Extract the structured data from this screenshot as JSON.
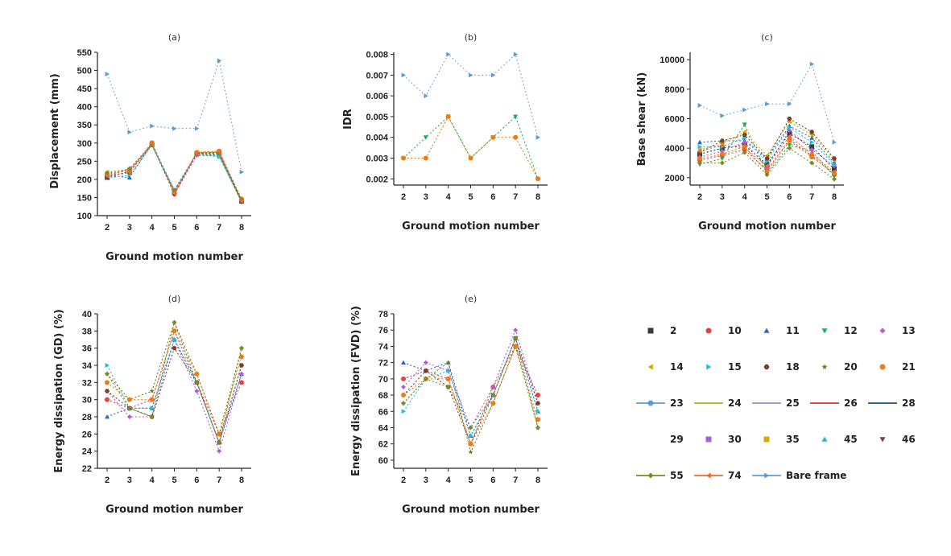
{
  "figure": {
    "colors": {
      "2": "#3b3b3b",
      "10": "#e8413c",
      "11": "#2f65c9",
      "12": "#1fae4f",
      "13": "#b85ad6",
      "14": "#c8b000",
      "15": "#17c2e0",
      "18": "#7a3e2a",
      "20": "#6f7d15",
      "21": "#ea7d17",
      "23": "#5b9bd5",
      "24": "#a6b523",
      "25": "#a884c7",
      "26": "#d9342b",
      "28": "#1f4e8a",
      "29": "#6b6b6b",
      "30": "#a55ee8",
      "35": "#e3a300",
      "45": "#22b8c8",
      "46": "#7a3d4f",
      "55": "#7a8a2a",
      "74": "#ed6c2b",
      "Bare frame": "#5b9bd5"
    },
    "legend": {
      "rows": [
        [
          "2",
          "10",
          "11",
          "12",
          "13"
        ],
        [
          "14",
          "15",
          "18",
          "20",
          "21"
        ],
        [
          "23",
          "24",
          "25",
          "26",
          "28"
        ],
        [
          "29",
          "30",
          "35",
          "45",
          "46"
        ],
        [
          "55",
          "74",
          "Bare frame"
        ]
      ],
      "markers": {
        "2": "square",
        "10": "circle",
        "11": "triangle-up",
        "12": "triangle-down",
        "13": "diamond",
        "14": "triangle-left",
        "15": "triangle-right",
        "18": "hexagon",
        "20": "star",
        "21": "circle",
        "23": "line-circle",
        "24": "line",
        "25": "line",
        "26": "line",
        "28": "line",
        "29": "none",
        "30": "square",
        "35": "square",
        "45": "triangle-up",
        "46": "triangle-down",
        "55": "line-diamond",
        "74": "line-triangle-left",
        "Bare frame": "line-triangle-right"
      }
    }
  },
  "chart_data": [
    {
      "id": "a",
      "type": "line",
      "title": "(a)",
      "xlabel": "Ground motion number",
      "ylabel": "Displacement (mm)",
      "x": [
        2,
        3,
        4,
        5,
        6,
        7,
        8
      ],
      "xticks": [
        "2",
        "3",
        "4",
        "5",
        "6",
        "7",
        "8"
      ],
      "ylim": [
        100,
        550
      ],
      "yticks": [
        "100",
        "150",
        "200",
        "250",
        "300",
        "350",
        "400",
        "450",
        "500",
        "550"
      ],
      "series": [
        {
          "name": "2",
          "values": [
            205,
            222,
            295,
            165,
            270,
            270,
            140
          ]
        },
        {
          "name": "10",
          "values": [
            212,
            218,
            297,
            168,
            272,
            272,
            142
          ]
        },
        {
          "name": "11",
          "values": [
            210,
            205,
            298,
            170,
            271,
            268,
            143
          ]
        },
        {
          "name": "12",
          "values": [
            215,
            225,
            300,
            162,
            268,
            266,
            138
          ]
        },
        {
          "name": "13",
          "values": [
            208,
            230,
            296,
            158,
            266,
            264,
            137
          ]
        },
        {
          "name": "14",
          "values": [
            220,
            226,
            294,
            166,
            275,
            276,
            145
          ]
        },
        {
          "name": "15",
          "values": [
            203,
            212,
            293,
            172,
            269,
            262,
            141
          ]
        },
        {
          "name": "18",
          "values": [
            206,
            220,
            299,
            160,
            273,
            274,
            139
          ]
        },
        {
          "name": "21",
          "values": [
            214,
            224,
            301,
            164,
            274,
            278,
            146
          ]
        },
        {
          "name": "55",
          "values": [
            218,
            228,
            296,
            168,
            270,
            272,
            144
          ]
        },
        {
          "name": "74",
          "values": [
            209,
            219,
            298,
            162,
            272,
            275,
            140
          ]
        },
        {
          "name": "Bare frame",
          "values": [
            490,
            330,
            347,
            340,
            340,
            527,
            220
          ]
        }
      ]
    },
    {
      "id": "b",
      "type": "line",
      "title": "(b)",
      "xlabel": "Ground motion number",
      "ylabel": "IDR",
      "x": [
        2,
        3,
        4,
        5,
        6,
        7,
        8
      ],
      "xticks": [
        "2",
        "3",
        "4",
        "5",
        "6",
        "7",
        "8"
      ],
      "ylim": [
        0.0017,
        0.0081
      ],
      "yticks": [
        "0.002",
        "0.003",
        "0.004",
        "0.005",
        "0.006",
        "0.007",
        "0.008"
      ],
      "tick_values": [
        0.002,
        0.003,
        0.004,
        0.005,
        0.006,
        0.007,
        0.008
      ],
      "series": [
        {
          "name": "12",
          "values": [
            0.003,
            0.004,
            0.005,
            0.003,
            0.004,
            0.005,
            0.002
          ]
        },
        {
          "name": "21",
          "values": [
            0.003,
            0.003,
            0.005,
            0.003,
            0.004,
            0.004,
            0.002
          ]
        },
        {
          "name": "Bare frame",
          "values": [
            0.007,
            0.006,
            0.008,
            0.007,
            0.007,
            0.008,
            0.004
          ]
        }
      ]
    },
    {
      "id": "c",
      "type": "line",
      "title": "(c)",
      "xlabel": "Ground motion number",
      "ylabel": "Base shear (kN)",
      "x": [
        2,
        3,
        4,
        5,
        6,
        7,
        8
      ],
      "xticks": [
        "2",
        "3",
        "4",
        "5",
        "6",
        "7",
        "8"
      ],
      "ylim": [
        1500,
        10500
      ],
      "yticks": [
        "2000",
        "4000",
        "6000",
        "8000",
        "10000"
      ],
      "tick_values": [
        2000,
        4000,
        6000,
        8000,
        10000
      ],
      "series": [
        {
          "name": "2",
          "values": [
            3600,
            4000,
            4200,
            2900,
            5000,
            4100,
            2600
          ]
        },
        {
          "name": "10",
          "values": [
            3200,
            3500,
            3900,
            2500,
            4600,
            3500,
            2200
          ]
        },
        {
          "name": "11",
          "values": [
            4400,
            4500,
            4500,
            3300,
            5500,
            4700,
            3000
          ]
        },
        {
          "name": "12",
          "values": [
            2900,
            3300,
            5600,
            2300,
            4200,
            3800,
            2100
          ]
        },
        {
          "name": "13",
          "values": [
            3400,
            3800,
            4400,
            2700,
            5200,
            3900,
            2800
          ]
        },
        {
          "name": "14",
          "values": [
            3900,
            4300,
            5100,
            3500,
            5800,
            4900,
            3200
          ]
        },
        {
          "name": "15",
          "values": [
            4100,
            4100,
            4700,
            3100,
            5400,
            4400,
            2900
          ]
        },
        {
          "name": "18",
          "values": [
            3700,
            4500,
            4900,
            3300,
            6000,
            5100,
            3300
          ]
        },
        {
          "name": "21",
          "values": [
            3300,
            3600,
            4100,
            2400,
            4500,
            3400,
            2300
          ]
        },
        {
          "name": "55",
          "values": [
            3000,
            3000,
            3700,
            2200,
            4000,
            3000,
            1900
          ]
        },
        {
          "name": "74",
          "values": [
            3800,
            4200,
            4000,
            2800,
            4800,
            3600,
            2400
          ]
        },
        {
          "name": "Bare frame",
          "values": [
            6900,
            6200,
            6600,
            7000,
            7000,
            9700,
            4400
          ]
        }
      ]
    },
    {
      "id": "d",
      "type": "line",
      "title": "(d)",
      "xlabel": "Ground motion number",
      "ylabel": "Energy dissipation (GD) (%)",
      "x": [
        2,
        3,
        4,
        5,
        6,
        7,
        8
      ],
      "xticks": [
        "2",
        "3",
        "4",
        "5",
        "6",
        "7",
        "8"
      ],
      "ylim": [
        22,
        40
      ],
      "yticks": [
        "22",
        "24",
        "26",
        "28",
        "30",
        "32",
        "34",
        "36",
        "38",
        "40"
      ],
      "series": [
        {
          "name": "10",
          "values": [
            30,
            29,
            30,
            38,
            32,
            26,
            32
          ]
        },
        {
          "name": "11",
          "values": [
            28,
            29,
            29,
            37,
            32,
            25,
            33
          ]
        },
        {
          "name": "13",
          "values": [
            31,
            28,
            28,
            37,
            31,
            24,
            33
          ]
        },
        {
          "name": "15",
          "values": [
            34,
            29,
            29,
            37,
            32,
            25,
            34
          ]
        },
        {
          "name": "18",
          "values": [
            31,
            29,
            28,
            36,
            32,
            25,
            34
          ]
        },
        {
          "name": "20",
          "values": [
            33,
            30,
            31,
            39,
            33,
            26,
            36
          ]
        },
        {
          "name": "21",
          "values": [
            32,
            30,
            30,
            38,
            33,
            26,
            35
          ]
        },
        {
          "name": "55",
          "values": [
            33,
            29,
            28,
            39,
            32,
            25,
            36
          ]
        }
      ]
    },
    {
      "id": "e",
      "type": "line",
      "title": "(e)",
      "xlabel": "Ground motion number",
      "ylabel": "Energy dissipation (FVD) (%)",
      "x": [
        2,
        3,
        4,
        5,
        6,
        7,
        8
      ],
      "xticks": [
        "2",
        "3",
        "4",
        "5",
        "6",
        "7",
        "8"
      ],
      "ylim": [
        59,
        78
      ],
      "yticks": [
        "60",
        "62",
        "64",
        "66",
        "68",
        "70",
        "72",
        "74",
        "76",
        "78"
      ],
      "series": [
        {
          "name": "10",
          "values": [
            70,
            71,
            70,
            62,
            69,
            74,
            68
          ]
        },
        {
          "name": "11",
          "values": [
            72,
            71,
            72,
            63,
            68,
            75,
            66
          ]
        },
        {
          "name": "13",
          "values": [
            69,
            72,
            71,
            64,
            69,
            76,
            67
          ]
        },
        {
          "name": "15",
          "values": [
            66,
            70,
            71,
            63,
            68,
            75,
            66
          ]
        },
        {
          "name": "18",
          "values": [
            68,
            71,
            69,
            62,
            68,
            75,
            67
          ]
        },
        {
          "name": "20",
          "values": [
            67,
            70,
            72,
            61,
            67,
            74,
            64
          ]
        },
        {
          "name": "21",
          "values": [
            68,
            70,
            70,
            62,
            67,
            74,
            65
          ]
        },
        {
          "name": "55",
          "values": [
            67,
            70,
            69,
            64,
            68,
            75,
            64
          ]
        }
      ]
    }
  ]
}
